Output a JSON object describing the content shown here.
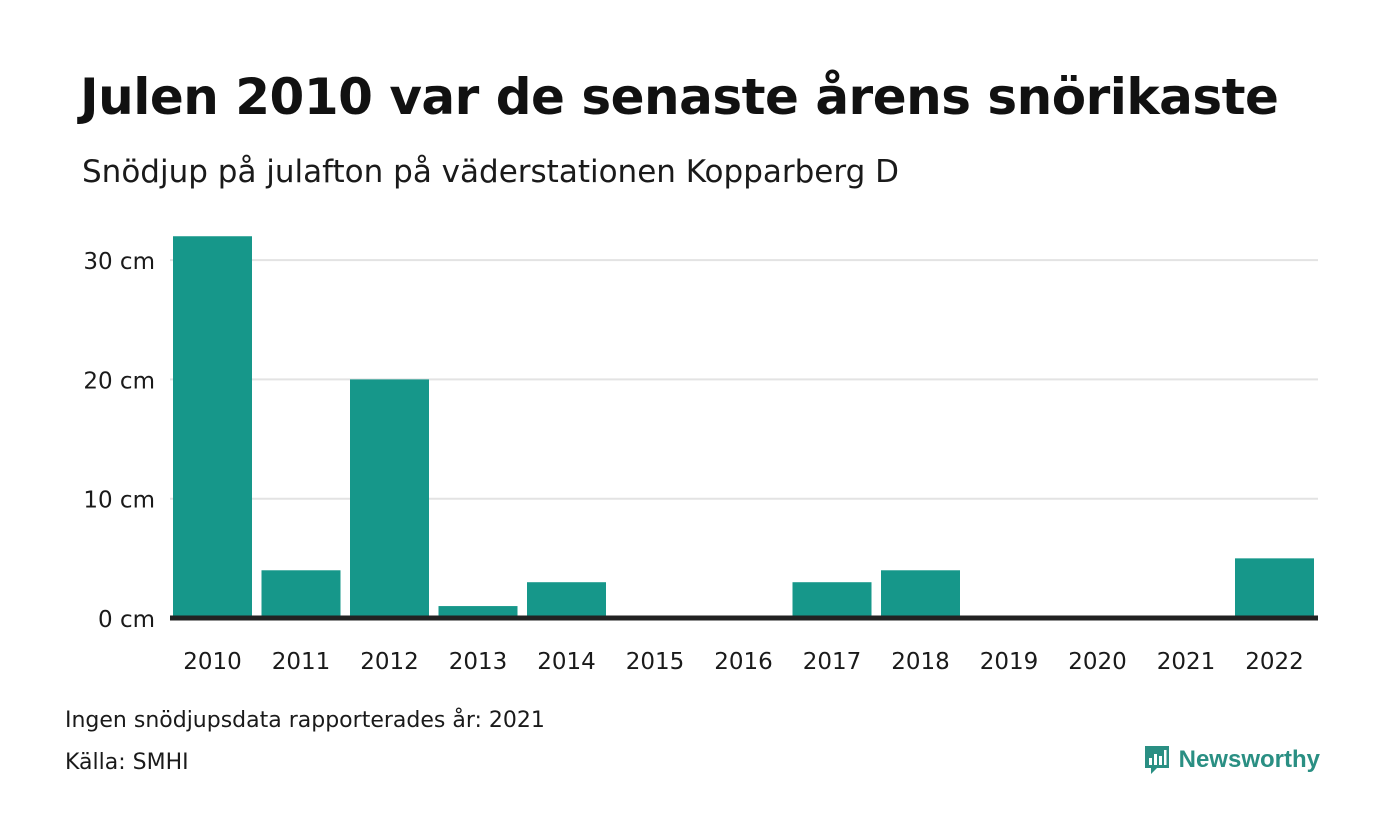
{
  "header": {
    "title": "Julen 2010 var de senaste årens snörikaste",
    "subtitle": "Snödjup på julafton på väderstationen Kopparberg D"
  },
  "footer": {
    "no_data_note": "Ingen snödjupsdata rapporterades år: 2021",
    "source": "Källa: SMHI",
    "brand": "Newsworthy"
  },
  "colors": {
    "bar": "#16978a",
    "gridline": "#e3e3e3",
    "baseline": "#222222",
    "brand": "#2a8f83"
  },
  "chart_data": {
    "type": "bar",
    "title": "Julen 2010 var de senaste årens snörikaste",
    "subtitle": "Snödjup på julafton på väderstationen Kopparberg D",
    "categories": [
      "2010",
      "2011",
      "2012",
      "2013",
      "2014",
      "2015",
      "2016",
      "2017",
      "2018",
      "2019",
      "2020",
      "2021",
      "2022"
    ],
    "values": [
      32,
      4,
      20,
      1,
      3,
      0,
      0,
      3,
      4,
      0,
      0,
      0,
      5
    ],
    "unit": "cm",
    "yticks": [
      0,
      10,
      20,
      30
    ],
    "ytick_labels": [
      "0 cm",
      "10 cm",
      "20 cm",
      "30 cm"
    ],
    "ylim": [
      0,
      32
    ],
    "grid": true,
    "legend": "none"
  }
}
